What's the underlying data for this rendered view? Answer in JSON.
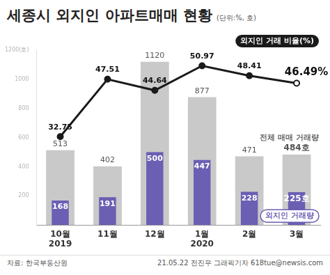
{
  "chart_data": {
    "type": "bar",
    "title": "세종시 외지인 아파트매매 현황",
    "subtitle": "(단위:%, 호)",
    "categories": [
      "10월",
      "11월",
      "12월",
      "1월",
      "2월",
      "3월"
    ],
    "year_labels": [
      "2019",
      null,
      null,
      "2020",
      null,
      null
    ],
    "series": [
      {
        "name": "전체 매매 거래량",
        "type": "bar",
        "color": "#c9c9c9",
        "values": [
          513,
          402,
          1120,
          877,
          471,
          484
        ],
        "value_labels": [
          "513",
          "402",
          "1120",
          "877",
          "471",
          "484호"
        ]
      },
      {
        "name": "외지인 거래량",
        "type": "bar",
        "color": "#6a5fb3",
        "values": [
          168,
          191,
          500,
          447,
          228,
          225
        ],
        "value_labels": [
          "168",
          "191",
          "500",
          "447",
          "228",
          "225호"
        ]
      },
      {
        "name": "외지인 거래 비율(%)",
        "type": "line",
        "axis": "y2",
        "color": "#1a1a1a",
        "marker": "circle",
        "values": [
          32.75,
          47.51,
          44.64,
          50.97,
          48.41,
          46.49
        ],
        "value_labels": [
          "32.75",
          "47.51",
          "44.64",
          "50.97",
          "48.41",
          "46.49%"
        ]
      }
    ],
    "ylim": [
      0,
      1200
    ],
    "yticks": [
      200,
      400,
      600,
      800,
      1000,
      {
        "value": 1200,
        "label": "1200(호)"
      }
    ],
    "y2lim": [
      10,
      55
    ],
    "grid": false,
    "data_labels": true,
    "tick_labels": "y",
    "source": "자료: 한국부동산원",
    "credit": "21.05.22 전진우 그래픽기자 618tue@newsis.com"
  }
}
